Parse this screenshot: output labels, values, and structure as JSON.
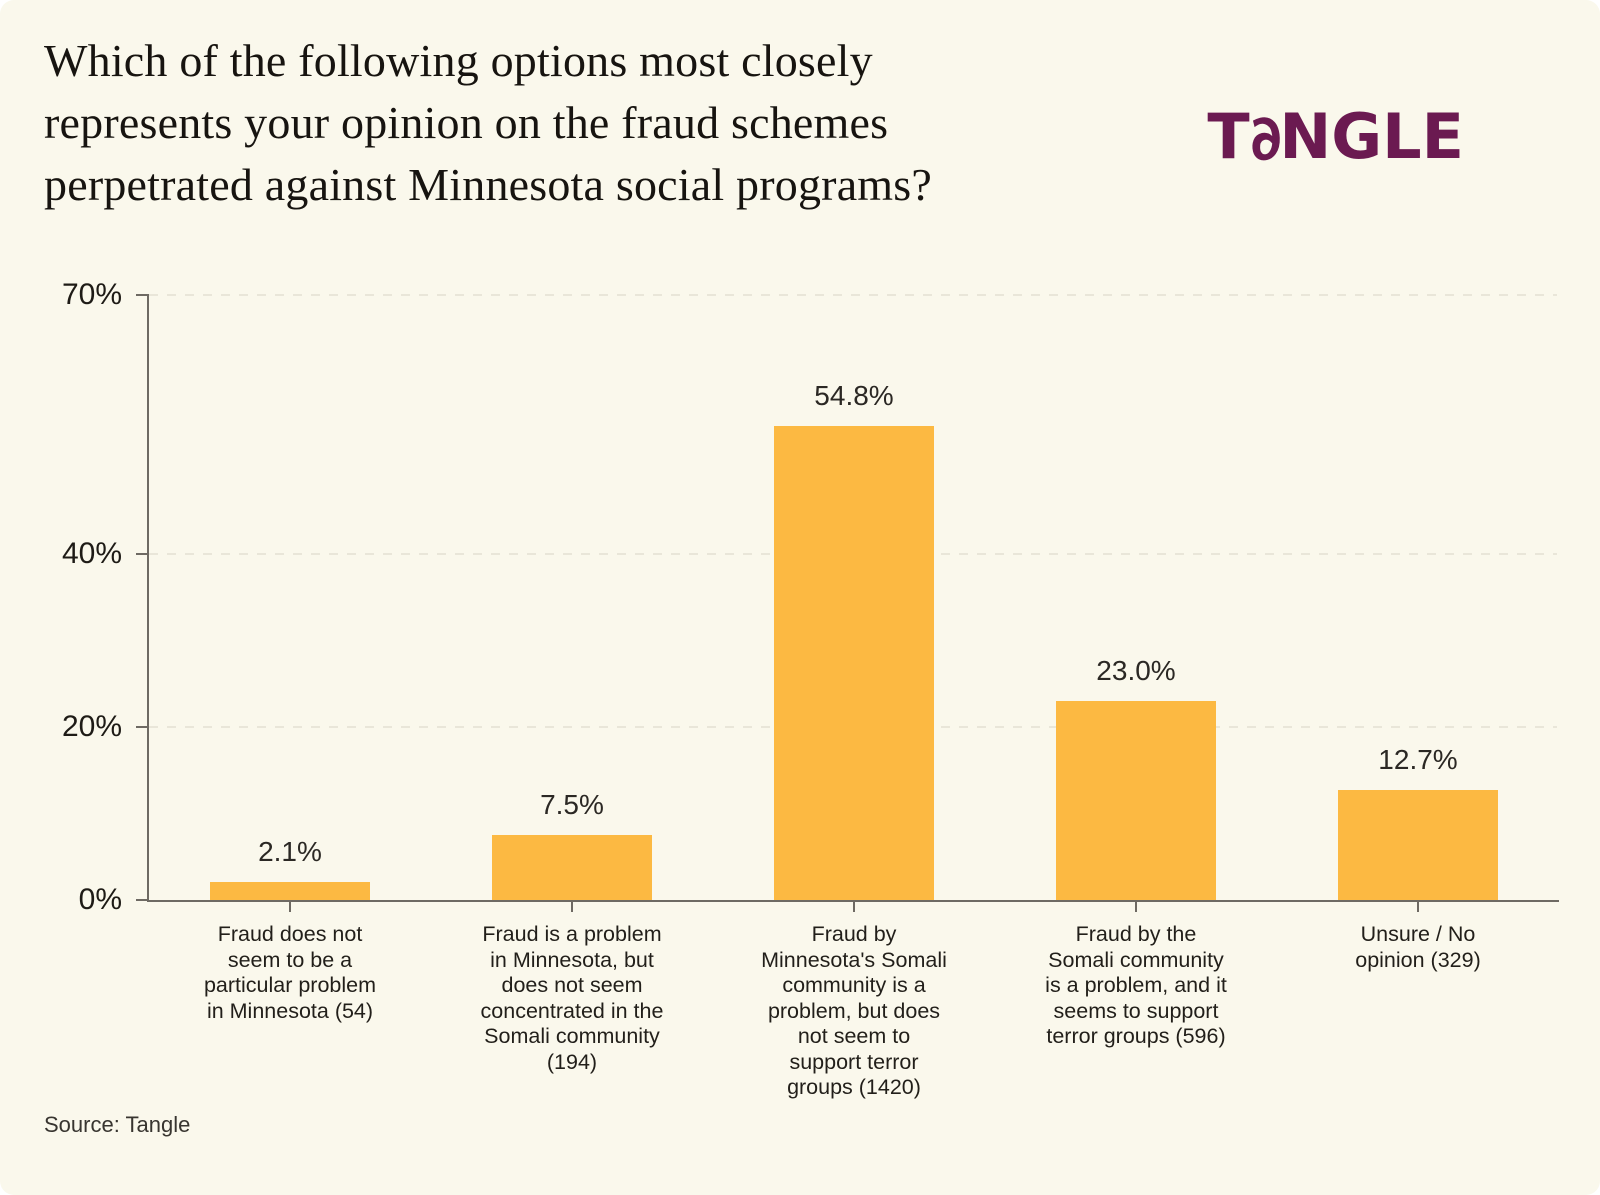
{
  "header": {
    "title": "Which of the following options most closely\nrepresents your opinion on the fraud schemes\nperpetrated against Minnesota social programs?",
    "logo": {
      "prefix": "T",
      "a_glyph": "∂",
      "suffix": "NGLE",
      "brand": "TANGLE",
      "color": "#6B1A51"
    }
  },
  "chart_data": {
    "type": "bar",
    "title": "Which of the following options most closely represents your opinion on the fraud schemes perpetrated against Minnesota social programs?",
    "categories": [
      "Fraud does not\nseem to be a\nparticular problem\nin Minnesota (54)",
      "Fraud is a problem\nin Minnesota, but\ndoes not seem\nconcentrated in the\nSomali community\n(194)",
      "Fraud by\nMinnesota's Somali\ncommunity is a\nproblem, but does\nnot seem to\nsupport terror\ngroups (1420)",
      "Fraud by the\nSomali community\nis a problem, and it\nseems to support\nterror groups (596)",
      "Unsure / No\nopinion (329)"
    ],
    "values": [
      2.1,
      7.5,
      54.8,
      23.0,
      12.7
    ],
    "value_labels": [
      "2.1%",
      "7.5%",
      "54.8%",
      "23.0%",
      "12.7%"
    ],
    "response_counts": [
      54,
      194,
      1420,
      596,
      329
    ],
    "xlabel": "",
    "ylabel": "",
    "ylim": [
      0,
      70
    ],
    "yticks": [
      {
        "value": 0,
        "label": "0%",
        "grid": false
      },
      {
        "value": 20,
        "label": "20%",
        "grid": true
      },
      {
        "value": 40,
        "label": "40%",
        "grid": true
      },
      {
        "value": 70,
        "label": "70%",
        "grid": true
      }
    ],
    "grid": "horizontal-dashed",
    "legend": "none",
    "bar_color": "#FCB942",
    "background_color": "#FAF8EC"
  },
  "footer": {
    "source": "Source: Tangle"
  }
}
